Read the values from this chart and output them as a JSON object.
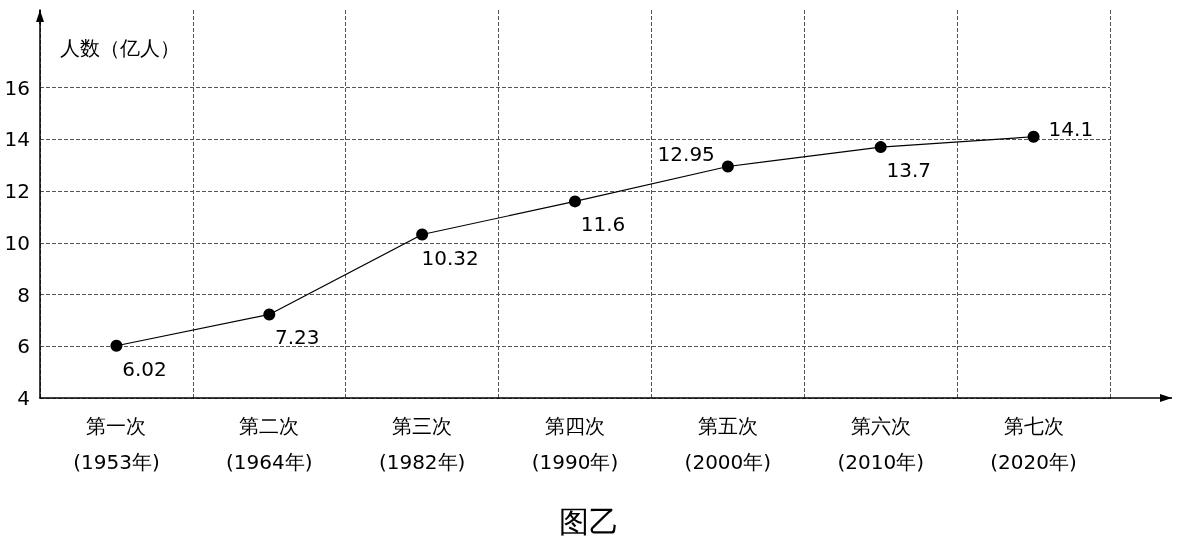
{
  "chart_data": {
    "type": "line",
    "title": "图乙",
    "ylabel": "人数（亿人）",
    "categories": [
      "第一次\n(1953年)",
      "第二次\n(1964年)",
      "第三次\n(1982年)",
      "第四次\n(1990年)",
      "第五次\n(2000年)",
      "第六次\n(2010年)",
      "第七次\n(2020年)"
    ],
    "series": [
      {
        "color": "#000000",
        "values": [
          6.02,
          7.23,
          10.32,
          11.6,
          12.95,
          13.7,
          14.1
        ]
      }
    ],
    "ylim": [
      4,
      19
    ],
    "yticks": [
      4,
      6,
      8,
      10,
      12,
      14,
      16
    ],
    "grid": true,
    "data_labels": true,
    "marker": "circle",
    "line_style": "solid"
  }
}
